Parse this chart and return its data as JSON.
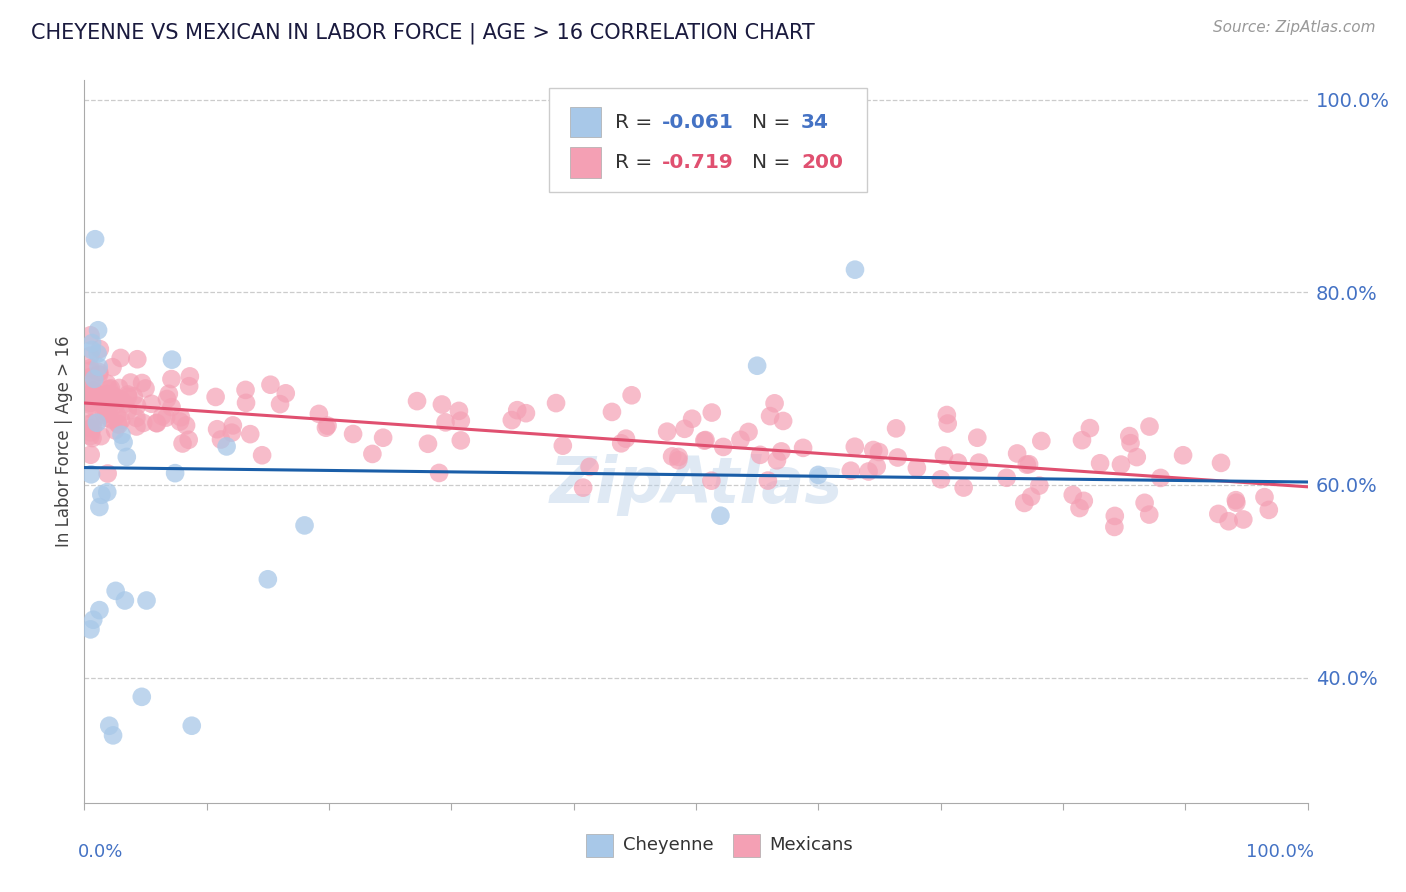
{
  "title": "CHEYENNE VS MEXICAN IN LABOR FORCE | AGE > 16 CORRELATION CHART",
  "source_text": "Source: ZipAtlas.com",
  "ylabel": "In Labor Force | Age > 16",
  "watermark": "ZipAtlas",
  "cheyenne_color": "#a8c8e8",
  "mexican_color": "#f4a0b4",
  "cheyenne_line_color": "#1a5ea8",
  "mexican_line_color": "#e05070",
  "background_color": "#ffffff",
  "grid_color": "#cccccc",
  "title_color": "#1a1a3e",
  "figsize": [
    14.06,
    8.92
  ],
  "dpi": 100,
  "xlim": [
    0.0,
    1.0
  ],
  "ylim": [
    0.27,
    1.02
  ],
  "ytick_positions": [
    0.4,
    0.6,
    0.8,
    1.0
  ],
  "ytick_labels": [
    "40.0%",
    "60.0%",
    "80.0%",
    "100.0%"
  ],
  "cheyenne_line_y0": 0.618,
  "cheyenne_line_y1": 0.603,
  "mexican_line_y0": 0.685,
  "mexican_line_y1": 0.598
}
